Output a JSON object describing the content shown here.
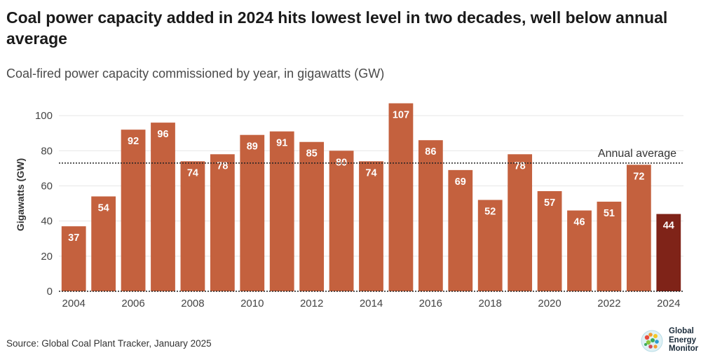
{
  "chart_data": {
    "type": "bar",
    "title": "Coal power capacity added in 2024 hits lowest level in two decades, well below annual average",
    "subtitle": "Coal-fired power capacity commissioned by year, in gigawatts (GW)",
    "ylabel": "Gigawatts (GW)",
    "xlabel": "",
    "ylim": [
      0,
      110
    ],
    "yticks": [
      0,
      20,
      40,
      60,
      80,
      100
    ],
    "categories": [
      2004,
      2005,
      2006,
      2007,
      2008,
      2009,
      2010,
      2011,
      2012,
      2013,
      2014,
      2015,
      2016,
      2017,
      2018,
      2019,
      2020,
      2021,
      2022,
      2023,
      2024
    ],
    "xtick_labels": [
      "2004",
      "",
      "2006",
      "",
      "2008",
      "",
      "2010",
      "",
      "2012",
      "",
      "2014",
      "",
      "2016",
      "",
      "2018",
      "",
      "2020",
      "",
      "2022",
      "",
      "2024"
    ],
    "values": [
      37,
      54,
      92,
      96,
      74,
      78,
      89,
      91,
      85,
      80,
      74,
      107,
      86,
      69,
      52,
      78,
      57,
      46,
      51,
      72,
      44
    ],
    "annual_average": 73,
    "annual_average_label": "Annual average",
    "grid": true,
    "colors": {
      "bar": "#c4613e",
      "highlight": "#7f2318",
      "label": "#ffffff",
      "grid": "#e6e6e6",
      "axis_text": "#444444",
      "average_line": "#222222"
    },
    "highlight_index": 20
  },
  "source": "Source: Global Coal Plant Tracker, January 2025",
  "logo": {
    "lines": [
      "Global",
      "Energy",
      "Monitor"
    ]
  }
}
